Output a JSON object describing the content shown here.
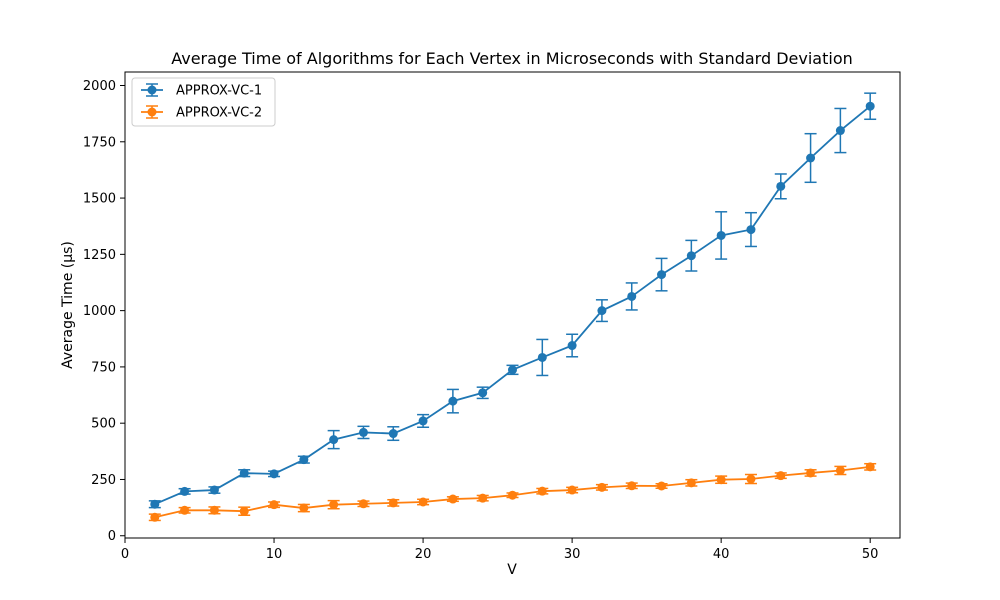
{
  "chart_data": {
    "type": "line",
    "title": "Average Time of Algorithms for Each Vertex in Microseconds with Standard Deviation",
    "xlabel": "V",
    "ylabel": "Average Time (µs)",
    "xlim": [
      0,
      52
    ],
    "ylim": [
      -10,
      2060
    ],
    "xticks": [
      0,
      10,
      20,
      30,
      40,
      50
    ],
    "yticks": [
      0,
      250,
      500,
      750,
      1000,
      1250,
      1500,
      1750,
      2000
    ],
    "grid": false,
    "legend_position": "top-left",
    "x": [
      2,
      4,
      6,
      8,
      10,
      12,
      14,
      16,
      18,
      20,
      22,
      24,
      26,
      28,
      30,
      32,
      34,
      36,
      38,
      40,
      42,
      44,
      46,
      48,
      50
    ],
    "series": [
      {
        "name": "APPROX-VC-1",
        "color": "#1f77b4",
        "marker": "circle",
        "values": [
          140,
          197,
          203,
          278,
          275,
          338,
          427,
          459,
          454,
          510,
          598,
          635,
          737,
          792,
          845,
          1000,
          1063,
          1160,
          1244,
          1334,
          1360,
          1552,
          1678,
          1800,
          1908
        ],
        "std": [
          15,
          12,
          14,
          15,
          12,
          15,
          40,
          27,
          30,
          28,
          52,
          25,
          20,
          80,
          50,
          48,
          60,
          72,
          68,
          105,
          75,
          55,
          108,
          98,
          58
        ]
      },
      {
        "name": "APPROX-VC-2",
        "color": "#ff7f0e",
        "marker": "circle",
        "values": [
          82,
          113,
          113,
          109,
          138,
          123,
          138,
          142,
          146,
          150,
          163,
          167,
          180,
          198,
          203,
          215,
          222,
          221,
          235,
          249,
          252,
          267,
          279,
          290,
          306
        ],
        "std": [
          14,
          12,
          15,
          18,
          12,
          16,
          18,
          12,
          14,
          12,
          10,
          12,
          10,
          12,
          12,
          12,
          12,
          10,
          14,
          16,
          20,
          12,
          14,
          18,
          14
        ]
      }
    ]
  }
}
